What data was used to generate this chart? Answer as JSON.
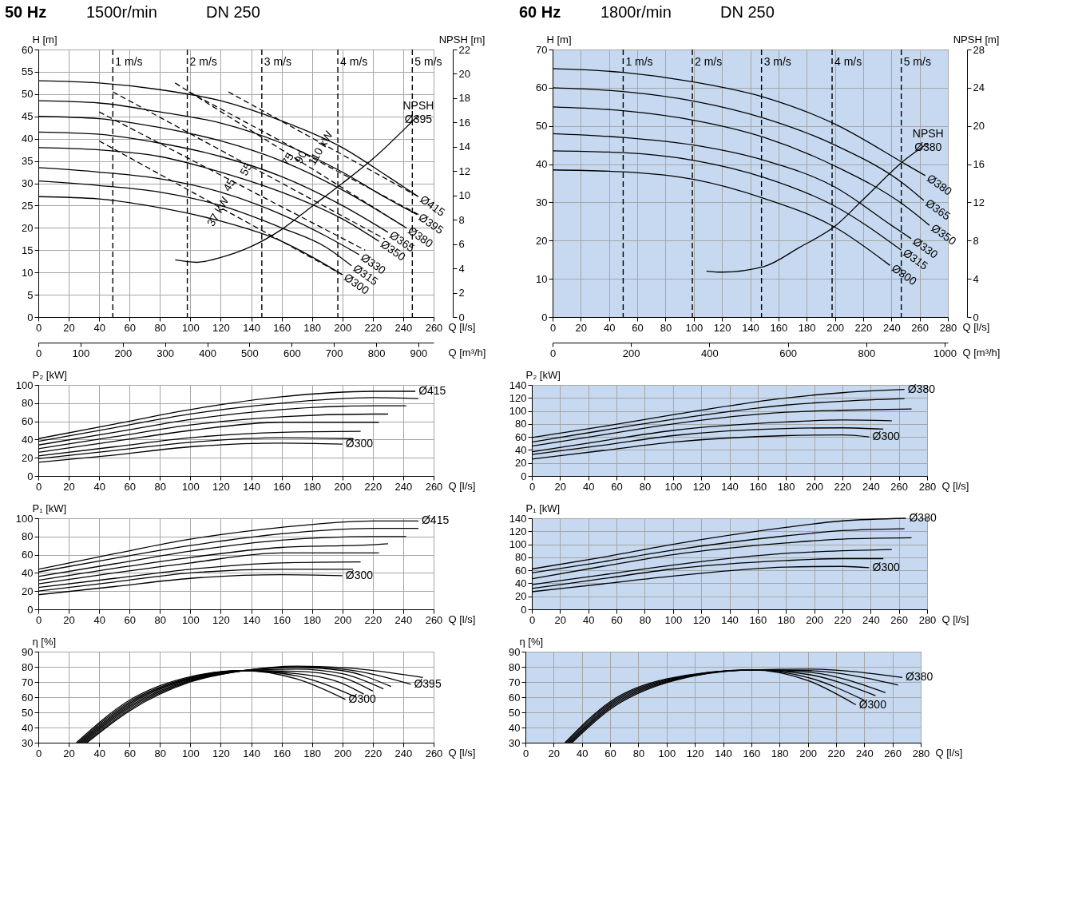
{
  "chart_data": [
    {
      "type": "line",
      "title": "50 Hz",
      "xlabel": "Q [l/s]",
      "x2label": "Q [m³/h]",
      "ylabel": "H [m]",
      "y2label": "NPSH [m]",
      "xlim": [
        0,
        260
      ],
      "xticks": [
        0,
        20,
        40,
        60,
        80,
        100,
        120,
        140,
        160,
        180,
        200,
        220,
        240,
        260
      ],
      "x2lim": [
        0,
        936
      ],
      "x2ticks": [
        0,
        100,
        200,
        300,
        400,
        500,
        600,
        700,
        800,
        900
      ],
      "ylim": [
        0,
        60
      ],
      "yticks": [
        0,
        5,
        10,
        15,
        20,
        25,
        30,
        35,
        40,
        45,
        50,
        55,
        60
      ],
      "y2lim": [
        0,
        22
      ],
      "y2ticks": [
        0,
        2,
        4,
        6,
        8,
        10,
        12,
        14,
        16,
        18,
        20,
        22
      ],
      "grid": true,
      "annotations": [
        "1500r/min",
        "DN 250",
        "37 kW",
        "45",
        "55",
        "75",
        "90",
        "110 kW"
      ],
      "ref_lines": [
        {
          "axis": "x",
          "value": 49,
          "label": "1 m/s",
          "line_style": "dashed",
          "color": "#000000"
        },
        {
          "axis": "x",
          "value": 98,
          "label": "2 m/s",
          "line_style": "dashed",
          "color": "#000000"
        },
        {
          "axis": "x",
          "value": 147,
          "label": "3 m/s",
          "line_style": "dashed",
          "color": "#000000"
        },
        {
          "axis": "x",
          "value": 197,
          "label": "4 m/s",
          "line_style": "dashed",
          "color": "#000000"
        },
        {
          "axis": "x",
          "value": 246,
          "label": "5 m/s",
          "line_style": "dashed",
          "color": "#000000"
        }
      ],
      "series": [
        {
          "name": "Ø415",
          "color": "#000000",
          "x": [
            0,
            40,
            80,
            120,
            160,
            200,
            230,
            250
          ],
          "values": [
            53,
            52.5,
            51,
            48.5,
            44,
            38,
            31.5,
            27
          ]
        },
        {
          "name": "Ø395",
          "color": "#000000",
          "x": [
            0,
            40,
            80,
            120,
            160,
            200,
            230,
            249
          ],
          "values": [
            48.5,
            48,
            46,
            43.5,
            39,
            32.5,
            26.5,
            23
          ]
        },
        {
          "name": "Ø380",
          "color": "#000000",
          "x": [
            0,
            40,
            80,
            120,
            160,
            200,
            242
          ],
          "values": [
            45,
            44.5,
            42.5,
            39.5,
            35,
            28.5,
            20
          ]
        },
        {
          "name": "Ø365",
          "color": "#000000",
          "x": [
            0,
            40,
            80,
            120,
            160,
            200,
            230
          ],
          "values": [
            41.5,
            41,
            39,
            36,
            31.5,
            25,
            19
          ]
        },
        {
          "name": "Ø350",
          "color": "#000000",
          "x": [
            0,
            40,
            80,
            120,
            160,
            200,
            224
          ],
          "values": [
            38,
            37.5,
            36,
            32.5,
            28,
            22,
            17
          ]
        },
        {
          "name": "Ø330",
          "color": "#000000",
          "x": [
            0,
            40,
            80,
            120,
            160,
            190,
            211
          ],
          "values": [
            33.5,
            32.5,
            31,
            28,
            23,
            18,
            14
          ]
        },
        {
          "name": "Ø315",
          "color": "#000000",
          "x": [
            0,
            40,
            80,
            120,
            160,
            190,
            206
          ],
          "values": [
            30.5,
            29.5,
            28,
            25,
            20,
            15.5,
            11.5
          ]
        },
        {
          "name": "Ø300",
          "color": "#000000",
          "x": [
            0,
            40,
            80,
            120,
            160,
            180,
            200
          ],
          "values": [
            27,
            26.5,
            24.5,
            21.5,
            17,
            13.5,
            9.5
          ]
        },
        {
          "name": "NPSH Ø395",
          "color": "#000000",
          "axis": "y2",
          "x": [
            90,
            104,
            120,
            140,
            160,
            180,
            200,
            220,
            250
          ],
          "values": [
            4.7,
            4.5,
            4.9,
            5.8,
            7.2,
            9.1,
            11,
            13,
            16.6
          ]
        },
        {
          "color": "#000000",
          "line_style": "dashed",
          "x": [
            40,
            200
          ],
          "values": [
            39.5,
            9.5
          ]
        },
        {
          "color": "#000000",
          "line_style": "dashed",
          "x": [
            40,
            215
          ],
          "values": [
            46,
            15
          ]
        },
        {
          "color": "#000000",
          "line_style": "dashed",
          "x": [
            49,
            228
          ],
          "values": [
            50.5,
            17.5
          ]
        },
        {
          "color": "#000000",
          "line_style": "dashed",
          "x": [
            90,
            242
          ],
          "values": [
            52.5,
            20
          ]
        },
        {
          "color": "#000000",
          "line_style": "dashed",
          "x": [
            99,
            250
          ],
          "values": [
            50.5,
            23
          ]
        },
        {
          "color": "#000000",
          "line_style": "dashed",
          "x": [
            125,
            250
          ],
          "values": [
            50.5,
            27
          ]
        }
      ]
    },
    {
      "type": "line",
      "title": "60 Hz",
      "xlabel": "Q [l/s]",
      "x2label": "Q [m³/h]",
      "ylabel": "H [m]",
      "y2label": "NPSH [m]",
      "xlim": [
        0,
        280
      ],
      "xticks": [
        0,
        20,
        40,
        60,
        80,
        100,
        120,
        140,
        160,
        180,
        200,
        220,
        240,
        260,
        280
      ],
      "x2lim": [
        0,
        1008
      ],
      "x2ticks": [
        0,
        200,
        400,
        600,
        800,
        1000
      ],
      "ylim": [
        0,
        70
      ],
      "yticks": [
        0,
        10,
        20,
        30,
        40,
        50,
        60,
        70
      ],
      "y2lim": [
        0,
        28
      ],
      "y2ticks": [
        0,
        4,
        8,
        12,
        16,
        20,
        24,
        28
      ],
      "grid": true,
      "annotations": [
        "1800r/min",
        "DN 250"
      ],
      "ref_lines": [
        {
          "axis": "x",
          "value": 50,
          "label": "1 m/s",
          "line_style": "dashed",
          "color": "#000000"
        },
        {
          "axis": "x",
          "value": 99,
          "label": "2 m/s",
          "line_style": "dashed",
          "color": "#000000"
        },
        {
          "axis": "x",
          "value": 148,
          "label": "3 m/s",
          "line_style": "dashed",
          "color": "#000000"
        },
        {
          "axis": "x",
          "value": 198,
          "label": "4 m/s",
          "line_style": "dashed",
          "color": "#000000"
        },
        {
          "axis": "x",
          "value": 247,
          "label": "5 m/s",
          "line_style": "dashed",
          "color": "#000000"
        }
      ],
      "series": [
        {
          "name": "Ø380",
          "color": "#000000",
          "x": [
            0,
            50,
            100,
            150,
            200,
            250,
            264
          ],
          "values": [
            65,
            64,
            61.5,
            57.5,
            50.5,
            40,
            37
          ]
        },
        {
          "name": "Ø365",
          "color": "#000000",
          "x": [
            0,
            50,
            100,
            150,
            200,
            250,
            263
          ],
          "values": [
            60,
            59,
            56.5,
            52,
            45,
            34.5,
            30.5
          ]
        },
        {
          "name": "Ø350",
          "color": "#000000",
          "x": [
            0,
            50,
            100,
            150,
            200,
            250,
            267
          ],
          "values": [
            55,
            54,
            51.5,
            47,
            39.5,
            29,
            24
          ]
        },
        {
          "name": "Ø330",
          "color": "#000000",
          "x": [
            0,
            50,
            100,
            150,
            200,
            240,
            254
          ],
          "values": [
            48,
            47,
            45,
            41,
            34,
            24,
            20.5
          ]
        },
        {
          "name": "Ø315",
          "color": "#000000",
          "x": [
            0,
            50,
            100,
            150,
            200,
            247
          ],
          "values": [
            43.5,
            43,
            41,
            36.5,
            29,
            17.5
          ]
        },
        {
          "name": "Ø300",
          "color": "#000000",
          "x": [
            0,
            50,
            100,
            150,
            200,
            239
          ],
          "values": [
            38.5,
            38,
            36,
            31,
            23.5,
            13.5
          ]
        },
        {
          "name": "NPSH Ø380",
          "color": "#000000",
          "axis": "y2",
          "x": [
            109,
            120,
            150,
            175,
            200,
            220,
            250,
            266
          ],
          "values": [
            4.8,
            4.7,
            5.3,
            7.3,
            9.5,
            12.3,
            16.5,
            18.2
          ]
        }
      ]
    },
    {
      "type": "line",
      "xlabel": "Q [l/s]",
      "ylabel": "P₂ [kW]",
      "xlim": [
        0,
        260
      ],
      "xticks": [
        0,
        20,
        40,
        60,
        80,
        100,
        120,
        140,
        160,
        180,
        200,
        220,
        240,
        260
      ],
      "ylim": [
        0,
        100
      ],
      "yticks": [
        0,
        20,
        40,
        60,
        80,
        100
      ],
      "grid": true,
      "series": [
        {
          "name": "Ø415",
          "color": "#000000",
          "x": [
            0,
            50,
            100,
            160,
            220,
            248
          ],
          "values": [
            41,
            57,
            73,
            87,
            93,
            93
          ]
        },
        {
          "color": "#000000",
          "x": [
            0,
            50,
            100,
            160,
            220,
            250
          ],
          "values": [
            38,
            53,
            68,
            80,
            86,
            85
          ]
        },
        {
          "color": "#000000",
          "x": [
            0,
            50,
            100,
            160,
            220,
            242
          ],
          "values": [
            34,
            48,
            62,
            73,
            77,
            77
          ]
        },
        {
          "color": "#000000",
          "x": [
            0,
            50,
            100,
            160,
            220,
            230
          ],
          "values": [
            30,
            43,
            56,
            65,
            68,
            68
          ]
        },
        {
          "color": "#000000",
          "x": [
            0,
            50,
            100,
            160,
            224
          ],
          "values": [
            26,
            38,
            50,
            59,
            59
          ]
        },
        {
          "color": "#000000",
          "x": [
            0,
            50,
            100,
            160,
            212
          ],
          "values": [
            22,
            32,
            42,
            48,
            49
          ]
        },
        {
          "color": "#000000",
          "x": [
            0,
            50,
            100,
            160,
            207
          ],
          "values": [
            19,
            28,
            37,
            42,
            41
          ]
        },
        {
          "name": "Ø300",
          "color": "#000000",
          "x": [
            0,
            50,
            100,
            160,
            200
          ],
          "values": [
            15,
            23,
            32,
            36,
            35
          ]
        }
      ]
    },
    {
      "type": "line",
      "xlabel": "Q [l/s]",
      "ylabel": "P₂ [kW]",
      "xlim": [
        0,
        280
      ],
      "xticks": [
        0,
        20,
        40,
        60,
        80,
        100,
        120,
        140,
        160,
        180,
        200,
        220,
        240,
        260,
        280
      ],
      "ylim": [
        0,
        140
      ],
      "yticks": [
        0,
        20,
        40,
        60,
        80,
        100,
        120,
        140
      ],
      "grid": true,
      "series": [
        {
          "name": "Ø380",
          "color": "#000000",
          "x": [
            0,
            50,
            100,
            180,
            220,
            264
          ],
          "values": [
            59,
            76,
            94,
            120,
            128,
            133
          ]
        },
        {
          "color": "#000000",
          "x": [
            0,
            50,
            100,
            180,
            220,
            264
          ],
          "values": [
            52,
            70,
            87,
            109,
            115,
            119
          ]
        },
        {
          "color": "#000000",
          "x": [
            0,
            50,
            100,
            180,
            220,
            269
          ],
          "values": [
            46,
            63,
            80,
            98,
            101,
            103
          ]
        },
        {
          "color": "#000000",
          "x": [
            0,
            50,
            100,
            180,
            220,
            255
          ],
          "values": [
            37,
            54,
            70,
            83,
            86,
            85
          ]
        },
        {
          "color": "#000000",
          "x": [
            0,
            50,
            100,
            180,
            220,
            249
          ],
          "values": [
            33,
            47,
            62,
            73,
            74,
            72
          ]
        },
        {
          "name": "Ø300",
          "color": "#000000",
          "x": [
            0,
            50,
            100,
            180,
            220,
            239
          ],
          "values": [
            26,
            39,
            52,
            62,
            63,
            60
          ]
        }
      ]
    },
    {
      "type": "line",
      "xlabel": "Q [l/s]",
      "ylabel": "P₁ [kW]",
      "xlim": [
        0,
        260
      ],
      "xticks": [
        0,
        20,
        40,
        60,
        80,
        100,
        120,
        140,
        160,
        180,
        200,
        220,
        240,
        260
      ],
      "ylim": [
        0,
        100
      ],
      "yticks": [
        0,
        20,
        40,
        60,
        80,
        100
      ],
      "grid": true,
      "series": [
        {
          "name": "Ø415",
          "color": "#000000",
          "x": [
            0,
            50,
            100,
            160,
            220,
            250
          ],
          "values": [
            44,
            61,
            77,
            90,
            97,
            97
          ]
        },
        {
          "color": "#000000",
          "x": [
            0,
            50,
            100,
            160,
            220,
            250
          ],
          "values": [
            41,
            56,
            70,
            83,
            89,
            89
          ]
        },
        {
          "color": "#000000",
          "x": [
            0,
            50,
            100,
            160,
            220,
            242
          ],
          "values": [
            36,
            50,
            64,
            76,
            80,
            80
          ]
        },
        {
          "color": "#000000",
          "x": [
            0,
            50,
            100,
            160,
            220,
            230
          ],
          "values": [
            32,
            45,
            57,
            68,
            71,
            72
          ]
        },
        {
          "color": "#000000",
          "x": [
            0,
            50,
            100,
            160,
            224
          ],
          "values": [
            28,
            40,
            51,
            62,
            62
          ]
        },
        {
          "color": "#000000",
          "x": [
            0,
            50,
            100,
            160,
            212
          ],
          "values": [
            24,
            34,
            44,
            51,
            52
          ]
        },
        {
          "color": "#000000",
          "x": [
            0,
            50,
            100,
            160,
            207
          ],
          "values": [
            20,
            30,
            40,
            44,
            44
          ]
        },
        {
          "name": "Ø300",
          "color": "#000000",
          "x": [
            0,
            50,
            100,
            160,
            200
          ],
          "values": [
            16,
            25,
            34,
            38,
            37
          ]
        }
      ]
    },
    {
      "type": "line",
      "xlabel": "Q [l/s]",
      "ylabel": "P₁ [kW]",
      "xlim": [
        0,
        280
      ],
      "xticks": [
        0,
        20,
        40,
        60,
        80,
        100,
        120,
        140,
        160,
        180,
        200,
        220,
        240,
        260,
        280
      ],
      "ylim": [
        0,
        140
      ],
      "yticks": [
        0,
        20,
        40,
        60,
        80,
        100,
        120,
        140
      ],
      "grid": true,
      "series": [
        {
          "name": "Ø380",
          "color": "#000000",
          "x": [
            0,
            50,
            100,
            180,
            220,
            265
          ],
          "values": [
            62,
            80,
            100,
            126,
            136,
            140
          ]
        },
        {
          "color": "#000000",
          "x": [
            0,
            50,
            100,
            180,
            220,
            264
          ],
          "values": [
            56,
            73,
            91,
            113,
            121,
            124
          ]
        },
        {
          "color": "#000000",
          "x": [
            0,
            50,
            100,
            180,
            220,
            269
          ],
          "values": [
            47,
            66,
            84,
            102,
            108,
            110
          ]
        },
        {
          "color": "#000000",
          "x": [
            0,
            50,
            100,
            180,
            220,
            255
          ],
          "values": [
            38,
            53,
            68,
            86,
            90,
            92
          ]
        },
        {
          "color": "#000000",
          "x": [
            0,
            50,
            100,
            180,
            220,
            249
          ],
          "values": [
            32,
            47,
            62,
            75,
            78,
            78
          ]
        },
        {
          "name": "Ø300",
          "color": "#000000",
          "x": [
            0,
            50,
            100,
            180,
            220,
            239
          ],
          "values": [
            27,
            39,
            51,
            65,
            66,
            64
          ]
        }
      ]
    },
    {
      "type": "line",
      "xlabel": "Q [l/s]",
      "ylabel": "η [%]",
      "xlim": [
        0,
        260
      ],
      "xticks": [
        0,
        20,
        40,
        60,
        80,
        100,
        120,
        140,
        160,
        180,
        200,
        220,
        240,
        260
      ],
      "ylim": [
        30,
        90
      ],
      "yticks": [
        30,
        40,
        50,
        60,
        70,
        80,
        90
      ],
      "grid": true,
      "series": [
        {
          "name": "Ø300",
          "color": "#000000",
          "x": [
            25,
            60,
            100,
            135,
            170,
            202
          ],
          "values": [
            30,
            58,
            73.5,
            77.5,
            72,
            58.5
          ]
        },
        {
          "color": "#000000",
          "x": [
            26,
            60,
            100,
            135,
            170,
            208
          ],
          "values": [
            30,
            57,
            73,
            77.5,
            74,
            60.5
          ]
        },
        {
          "color": "#000000",
          "x": [
            27,
            60,
            100,
            135,
            170,
            200,
            214
          ],
          "values": [
            30,
            56,
            72.5,
            77.5,
            75.5,
            69,
            62
          ]
        },
        {
          "color": "#000000",
          "x": [
            28,
            60,
            100,
            135,
            170,
            200,
            220
          ],
          "values": [
            30,
            55,
            72,
            77.5,
            77,
            73,
            64
          ]
        },
        {
          "color": "#000000",
          "x": [
            29,
            60,
            100,
            135,
            170,
            200,
            227
          ],
          "values": [
            30,
            54,
            71.5,
            77.5,
            78.5,
            75.5,
            65.5
          ]
        },
        {
          "color": "#000000",
          "x": [
            30,
            60,
            100,
            135,
            170,
            200,
            232
          ],
          "values": [
            30,
            53,
            71,
            77.5,
            79.5,
            77.5,
            67
          ]
        },
        {
          "name": "Ø395",
          "color": "#000000",
          "x": [
            31,
            60,
            100,
            135,
            170,
            200,
            245
          ],
          "values": [
            30,
            52,
            70.5,
            77.5,
            80,
            78.5,
            68.5
          ]
        },
        {
          "color": "#000000",
          "x": [
            32,
            60,
            100,
            135,
            170,
            200,
            253
          ],
          "values": [
            30,
            51,
            70,
            77.5,
            80.5,
            79.5,
            73
          ]
        }
      ]
    },
    {
      "type": "line",
      "xlabel": "Q [l/s]",
      "ylabel": "η [%]",
      "xlim": [
        0,
        280
      ],
      "xticks": [
        0,
        20,
        40,
        60,
        80,
        100,
        120,
        140,
        160,
        180,
        200,
        220,
        240,
        260,
        280
      ],
      "ylim": [
        30,
        90
      ],
      "yticks": [
        30,
        40,
        50,
        60,
        70,
        80,
        90
      ],
      "grid": true,
      "series": [
        {
          "name": "Ø300",
          "color": "#000000",
          "x": [
            28,
            60,
            100,
            160,
            200,
            234
          ],
          "values": [
            30,
            57,
            72,
            78,
            71,
            55
          ]
        },
        {
          "color": "#000000",
          "x": [
            29,
            60,
            100,
            160,
            200,
            240
          ],
          "values": [
            30,
            56,
            71.5,
            78,
            73,
            58
          ]
        },
        {
          "color": "#000000",
          "x": [
            30,
            60,
            100,
            160,
            200,
            248
          ],
          "values": [
            30,
            55,
            71,
            78,
            75,
            61
          ]
        },
        {
          "color": "#000000",
          "x": [
            31,
            60,
            100,
            160,
            200,
            255
          ],
          "values": [
            30,
            54,
            70.5,
            78,
            76.5,
            63
          ]
        },
        {
          "color": "#000000",
          "x": [
            32,
            60,
            100,
            160,
            200,
            264
          ],
          "values": [
            30,
            53,
            70,
            78,
            77.5,
            68
          ]
        },
        {
          "name": "Ø380",
          "color": "#000000",
          "x": [
            33,
            60,
            100,
            160,
            200,
            267
          ],
          "values": [
            30,
            52,
            69.5,
            78,
            78.5,
            73
          ]
        }
      ]
    }
  ]
}
